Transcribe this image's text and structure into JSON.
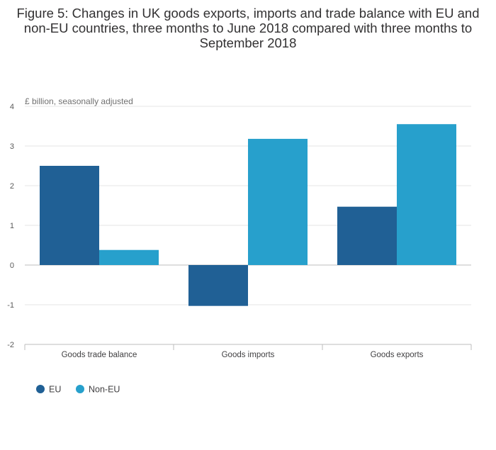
{
  "chart_data": {
    "type": "bar",
    "title": "Figure 5: Changes in UK goods exports, imports and trade balance with EU and non-EU countries, three months to June 2018 compared with three months to September 2018",
    "ylabel": "£ billion, seasonally adjusted",
    "xlabel": "",
    "ylim": [
      -2,
      4
    ],
    "yticks": [
      4,
      3,
      2,
      1,
      0,
      -1,
      -2
    ],
    "grid": true,
    "legend_position": "bottom-left",
    "categories": [
      "Goods trade balance",
      "Goods imports",
      "Goods exports"
    ],
    "series": [
      {
        "name": "EU",
        "color": "#206095",
        "values": [
          2.5,
          -1.03,
          1.47
        ]
      },
      {
        "name": "Non-EU",
        "color": "#27a0cc",
        "values": [
          0.38,
          3.18,
          3.55
        ]
      }
    ]
  }
}
